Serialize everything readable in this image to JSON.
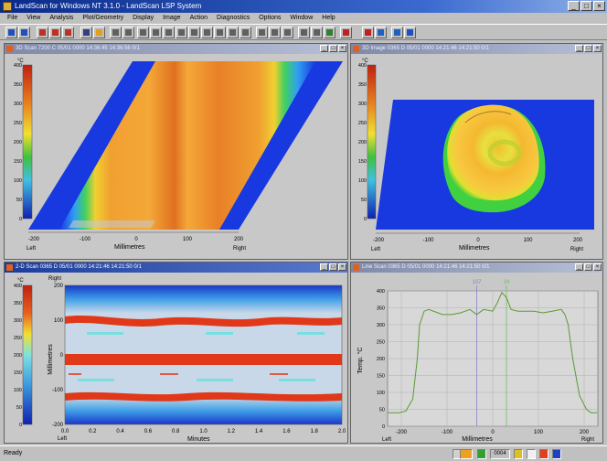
{
  "window": {
    "title": "LandScan for Windows NT 3.1.0 - LandScan LSP System",
    "buttons": [
      "_",
      "□",
      "×"
    ]
  },
  "menu": [
    "File",
    "View",
    "Analysis",
    "Plot/Geometry",
    "Display",
    "Image",
    "Action",
    "Diagnostics",
    "Options",
    "Window",
    "Help"
  ],
  "panes": {
    "top_left": {
      "title": "3D Scan 7200 C 05/01 0000 14:36:45 14:36:56 0/1",
      "unit": "°C",
      "scale_ticks": [
        "400",
        "350",
        "300",
        "250",
        "200",
        "150",
        "100",
        "50",
        "0"
      ],
      "x_ticks": [
        "-200",
        "-100",
        "0",
        "100",
        "200"
      ],
      "x_left": "Left",
      "x_right": "Right",
      "x_label": "Millimetres"
    },
    "top_right": {
      "title": "3D Image 0365 D 05/01 0000 14:21:46 14:21:50 0/1",
      "unit": "°C",
      "scale_ticks": [
        "400",
        "350",
        "300",
        "250",
        "200",
        "150",
        "100",
        "50",
        "0"
      ],
      "x_ticks": [
        "-200",
        "-100",
        "0",
        "100",
        "200"
      ],
      "x_left": "Left",
      "x_right": "Right",
      "x_label": "Millimetres"
    },
    "bottom_left": {
      "title": "2-D Scan 0365 D 05/01 0000 14:21:46 14:21:50 0/1",
      "unit": "°C",
      "scale_ticks": [
        "400",
        "350",
        "300",
        "250",
        "200",
        "150",
        "100",
        "50",
        "0"
      ],
      "y_ticks": [
        "200",
        "100",
        "0",
        "-100",
        "-200"
      ],
      "y_top": "Right",
      "y_label": "Millimetres",
      "x_ticks": [
        "0.0",
        "0.2",
        "0.4",
        "0.6",
        "0.8",
        "1.0",
        "1.2",
        "1.4",
        "1.6",
        "1.8",
        "2.0"
      ],
      "x_left": "Left",
      "x_label": "Minutes"
    },
    "bottom_right": {
      "title": "Line Scan 0365 D 05/01 0000 14:21:46 14:21:50 0/1",
      "y_label": "Temp. °C",
      "y_ticks": [
        "400",
        "350",
        "300",
        "250",
        "200",
        "150",
        "100",
        "50",
        "0"
      ],
      "x_ticks": [
        "-200",
        "-100",
        "0",
        "100",
        "200"
      ],
      "x_left": "Left",
      "x_right": "Right",
      "x_label": "Millimetres",
      "cursor_labels": [
        "107",
        "34"
      ]
    }
  },
  "chart_data": {
    "type": "line",
    "xlabel": "Millimetres",
    "ylabel": "Temp. °C",
    "xlim": [
      -230,
      230
    ],
    "ylim": [
      0,
      400
    ],
    "series": [
      {
        "x": [
          -230,
          -205,
          -190,
          -175,
          -165,
          -160,
          -150,
          -140,
          -120,
          -110,
          -90,
          -70,
          -50,
          -35,
          -20,
          0,
          10,
          20,
          30,
          40,
          55,
          70,
          90,
          110,
          130,
          150,
          158,
          165,
          175,
          190,
          205,
          215,
          228
        ],
        "values": [
          40,
          40,
          45,
          80,
          200,
          300,
          340,
          345,
          335,
          330,
          330,
          335,
          345,
          330,
          345,
          340,
          365,
          395,
          380,
          345,
          340,
          340,
          340,
          335,
          340,
          345,
          330,
          300,
          200,
          90,
          50,
          40,
          40
        ]
      }
    ],
    "cursors": [
      -35,
      30
    ],
    "colors": {
      "line": "#5a9a32",
      "cursor1": "#8b80d0",
      "cursor2": "#70c060"
    }
  },
  "status": {
    "left": "Ready",
    "count": "0004"
  }
}
